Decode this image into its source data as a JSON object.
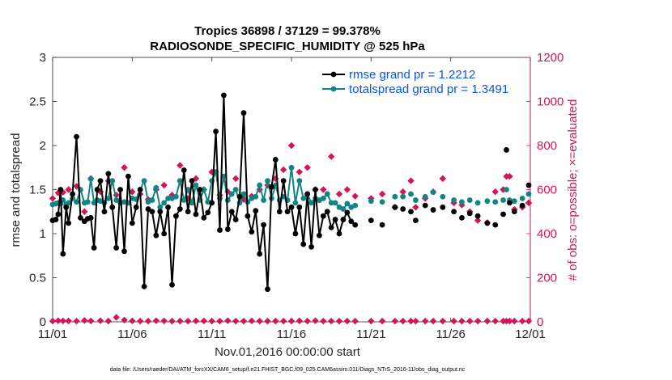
{
  "chart_data": {
    "type": "line",
    "title": "Tropics 36898 / 37129 = 99.378%",
    "subtitle": "RADIOSONDE_SPECIFIC_HUMIDITY @ 525 hPa",
    "xlabel": "Nov.01,2016 00:00:00 start",
    "ylabel": "rmse and totalspread",
    "y2label": "# of obs: o=possible; ×=evaluated",
    "footnote": "data file: /Users/raeder/DAI/ATM_forcXX/CAM6_setup/f.e21.FHIST_BGC.f09_025.CAM6assim.011/Diags_NTrS_2016-11/obs_diag_output.nc",
    "xlim": [
      0,
      30
    ],
    "ylim": [
      0,
      3
    ],
    "y2lim": [
      0,
      1200
    ],
    "x_ticks": [
      0,
      5,
      10,
      15,
      20,
      25,
      30
    ],
    "x_tick_labels": [
      "11/01",
      "11/06",
      "11/11",
      "11/16",
      "11/21",
      "11/26",
      "12/01"
    ],
    "y_ticks": [
      0,
      0.5,
      1,
      1.5,
      2,
      2.5,
      3
    ],
    "y_tick_labels": [
      "0",
      "0.5",
      "1",
      "1.5",
      "2",
      "2.5",
      "3"
    ],
    "y2_ticks": [
      0,
      200,
      400,
      600,
      800,
      1000,
      1200
    ],
    "y2_tick_labels": [
      "0",
      "200",
      "400",
      "600",
      "800",
      "1000",
      "1200"
    ],
    "legend_position": "top-right",
    "colors": {
      "rmse": "#000000",
      "totalspread": "#118483",
      "obs": "#d4145a",
      "legend_text": "#0a55e6",
      "axis": "#262626"
    },
    "series": [
      {
        "name": "rmse grand pr = 1.2212",
        "key": "rmse",
        "x": [
          0.0,
          0.2,
          0.35,
          0.5,
          0.65,
          0.85,
          1.0,
          1.25,
          1.5,
          1.75,
          2.0,
          2.2,
          2.4,
          2.6,
          2.8,
          3.0,
          3.25,
          3.5,
          3.75,
          4.0,
          4.25,
          4.5,
          4.75,
          5.0,
          5.25,
          5.5,
          5.75,
          6.0,
          6.25,
          6.5,
          6.75,
          7.0,
          7.25,
          7.5,
          7.75,
          8.0,
          8.25,
          8.5,
          8.75,
          9.0,
          9.25,
          9.5,
          9.75,
          10.0,
          10.25,
          10.5,
          10.75,
          11.0,
          11.25,
          11.5,
          11.75,
          12.0,
          12.25,
          12.5,
          12.75,
          13.0,
          13.25,
          13.5,
          13.75,
          14.0,
          14.25,
          14.5,
          14.75,
          15.0,
          15.25,
          15.5,
          15.75,
          16.0,
          16.25,
          16.5,
          16.75,
          17.0,
          17.25,
          17.5,
          17.75,
          18.0,
          18.25,
          18.5,
          18.75,
          19.0
        ],
        "values": [
          1.15,
          1.16,
          1.22,
          1.5,
          0.77,
          1.3,
          1.12,
          1.45,
          2.1,
          1.18,
          1.14,
          1.17,
          1.18,
          0.84,
          1.5,
          1.6,
          1.25,
          1.68,
          1.3,
          0.84,
          1.5,
          0.8,
          1.65,
          1.12,
          1.3,
          1.5,
          0.4,
          1.28,
          1.25,
          0.98,
          1.25,
          1.0,
          1.3,
          0.42,
          1.2,
          1.28,
          1.72,
          1.25,
          1.6,
          1.22,
          1.5,
          1.18,
          1.24,
          1.35,
          2.16,
          1.04,
          2.57,
          1.05,
          1.25,
          1.16,
          1.42,
          2.37,
          1.2,
          1.02,
          1.26,
          0.77,
          1.1,
          0.37,
          1.53,
          1.84,
          1.25,
          1.6,
          1.25,
          1.3,
          1.0,
          1.3,
          0.88,
          1.45,
          0.85,
          1.5,
          0.98,
          1.2,
          1.25,
          1.07,
          1.16,
          1.0,
          1.16,
          1.24,
          1.14,
          1.1
        ]
      },
      {
        "name": "totalspread grand pr = 1.3491",
        "key": "totalspread",
        "x": [
          0.0,
          0.2,
          0.35,
          0.5,
          0.65,
          0.85,
          1.0,
          1.25,
          1.5,
          1.75,
          2.0,
          2.2,
          2.4,
          2.6,
          2.8,
          3.0,
          3.25,
          3.5,
          3.75,
          4.0,
          4.25,
          4.5,
          4.75,
          5.0,
          5.25,
          5.5,
          5.75,
          6.0,
          6.25,
          6.5,
          6.75,
          7.0,
          7.25,
          7.5,
          7.75,
          8.0,
          8.25,
          8.5,
          8.75,
          9.0,
          9.25,
          9.5,
          9.75,
          10.0,
          10.25,
          10.5,
          10.75,
          11.0,
          11.25,
          11.5,
          11.75,
          12.0,
          12.25,
          12.5,
          12.75,
          13.0,
          13.25,
          13.5,
          13.75,
          14.0,
          14.25,
          14.5,
          14.75,
          15.0,
          15.25,
          15.5,
          15.75,
          16.0,
          16.25,
          16.5,
          16.75,
          17.0,
          17.25,
          17.5,
          17.75,
          18.0,
          18.25,
          18.5,
          18.75,
          19.0
        ],
        "values": [
          1.33,
          1.34,
          1.35,
          1.34,
          1.38,
          1.33,
          1.35,
          1.4,
          1.36,
          1.5,
          1.35,
          1.36,
          1.62,
          1.35,
          1.38,
          1.37,
          1.35,
          1.4,
          1.6,
          1.38,
          1.35,
          1.36,
          1.35,
          1.4,
          1.39,
          1.5,
          1.6,
          1.36,
          1.38,
          1.52,
          1.3,
          1.35,
          1.4,
          1.4,
          1.42,
          1.6,
          1.38,
          1.5,
          1.35,
          1.55,
          1.38,
          1.5,
          1.36,
          1.6,
          1.7,
          1.4,
          1.65,
          1.38,
          1.45,
          1.5,
          1.35,
          1.45,
          1.36,
          1.4,
          1.42,
          1.55,
          1.38,
          1.6,
          1.4,
          1.55,
          1.38,
          1.42,
          1.38,
          1.75,
          1.35,
          1.6,
          1.4,
          1.45,
          1.35,
          1.4,
          1.38,
          1.4,
          1.45,
          1.35,
          1.35,
          1.3,
          1.28,
          1.34,
          1.3,
          1.32
        ]
      }
    ],
    "sparse_series": {
      "rmse": {
        "x": [
          20.0,
          20.7,
          21.5,
          22.0,
          22.5,
          22.8,
          23.4,
          23.9,
          24.5,
          25.2,
          25.7,
          26.2,
          26.7,
          27.3,
          27.8,
          28.3,
          28.5,
          28.7,
          29.0,
          29.5,
          29.9
        ],
        "values": [
          1.15,
          1.1,
          1.3,
          1.28,
          1.25,
          1.15,
          1.32,
          1.27,
          1.3,
          1.25,
          1.18,
          1.23,
          1.2,
          1.12,
          1.1,
          1.22,
          1.95,
          1.35,
          1.25,
          1.32,
          1.55
        ]
      },
      "totalspread": {
        "x": [
          20.0,
          20.7,
          21.5,
          22.0,
          22.5,
          22.8,
          23.4,
          23.9,
          24.5,
          25.2,
          25.7,
          26.2,
          26.7,
          27.3,
          27.8,
          28.3,
          28.5,
          28.7,
          29.0,
          29.5,
          29.9
        ],
        "values": [
          1.37,
          1.36,
          1.42,
          1.42,
          1.45,
          1.38,
          1.42,
          1.47,
          1.42,
          1.38,
          1.36,
          1.38,
          1.35,
          1.37,
          1.36,
          1.38,
          1.5,
          1.38,
          1.37,
          1.4,
          1.45
        ]
      }
    },
    "obs_possible": {
      "x": [
        0.0,
        0.35,
        0.65,
        1.0,
        1.5,
        2.0,
        2.4,
        3.0,
        3.5,
        4.0,
        4.5,
        5.0,
        5.5,
        6.0,
        6.5,
        7.0,
        7.5,
        8.0,
        8.5,
        9.0,
        9.5,
        10.0,
        10.5,
        11.0,
        11.5,
        12.0,
        12.5,
        13.0,
        13.5,
        14.0,
        14.5,
        15.0,
        15.5,
        16.0,
        16.5,
        17.0,
        17.5,
        18.0,
        18.5,
        19.0,
        20.0,
        20.7,
        21.5,
        22.0,
        22.5,
        22.8,
        23.4,
        23.9,
        24.5,
        25.2,
        25.7,
        26.2,
        26.7,
        27.3,
        27.8,
        28.3,
        28.5,
        28.7,
        29.0,
        29.5,
        29.9
      ],
      "values": [
        560,
        585,
        588,
        600,
        615,
        500,
        650,
        590,
        640,
        575,
        700,
        590,
        580,
        555,
        600,
        620,
        575,
        710,
        560,
        650,
        600,
        680,
        575,
        590,
        650,
        555,
        570,
        600,
        620,
        650,
        690,
        800,
        680,
        700,
        600,
        600,
        750,
        580,
        600,
        570,
        560,
        580,
        520,
        590,
        640,
        520,
        560,
        590,
        650,
        540,
        530,
        500,
        460,
        450,
        590,
        600,
        660,
        660,
        510,
        520,
        540
      ]
    },
    "obs_evaluated": {
      "x": [
        0.0,
        0.35,
        0.65,
        1.0,
        1.5,
        2.0,
        2.4,
        3.0,
        3.5,
        4.0,
        4.5,
        5.0,
        5.5,
        6.0,
        6.5,
        7.0,
        7.5,
        8.0,
        8.5,
        9.0,
        9.5,
        10.0,
        10.5,
        11.0,
        11.5,
        12.0,
        12.5,
        13.0,
        13.5,
        14.0,
        14.5,
        15.0,
        15.5,
        16.0,
        16.5,
        17.0,
        17.5,
        18.0,
        18.5,
        19.0,
        20.0,
        20.7,
        21.5,
        22.0,
        22.5,
        22.8,
        23.4,
        23.9,
        24.5,
        25.2,
        25.7,
        26.2,
        26.7,
        27.3,
        27.8,
        28.3,
        28.5,
        28.7,
        29.0,
        29.5,
        29.9
      ],
      "values": [
        3,
        5,
        4,
        4,
        3,
        6,
        4,
        5,
        3,
        20,
        8,
        4,
        3,
        3,
        5,
        4,
        3,
        3,
        3,
        4,
        4,
        3,
        3,
        5,
        3,
        3,
        4,
        3,
        3,
        3,
        3,
        3,
        4,
        3,
        5,
        3,
        3,
        3,
        3,
        3,
        3,
        3,
        3,
        3,
        3,
        3,
        3,
        3,
        3,
        3,
        3,
        3,
        3,
        3,
        3,
        3,
        3,
        3,
        3,
        3,
        3
      ]
    }
  }
}
